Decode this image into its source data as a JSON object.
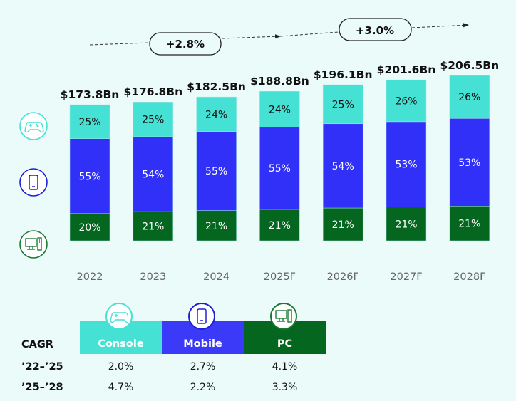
{
  "chart_data": {
    "type": "bar",
    "stacked": true,
    "title": "",
    "xlabel": "",
    "ylabel": "",
    "categories": [
      "2022",
      "2023",
      "2024",
      "2025F",
      "2026F",
      "2027F",
      "2028F"
    ],
    "totals": [
      173.8,
      176.8,
      182.5,
      188.8,
      196.1,
      201.6,
      206.5
    ],
    "total_labels": [
      "$173.8Bn",
      "$176.8Bn",
      "$182.5Bn",
      "$188.8Bn",
      "$196.1Bn",
      "$201.6Bn",
      "$206.5Bn"
    ],
    "series": [
      {
        "name": "PC",
        "color": "#04661f",
        "text_color": "#ffffff",
        "values": [
          20,
          21,
          21,
          21,
          21,
          21,
          21
        ]
      },
      {
        "name": "Mobile",
        "color": "#3030f8",
        "text_color": "#ffffff",
        "values": [
          55,
          54,
          55,
          55,
          54,
          53,
          53
        ]
      },
      {
        "name": "Console",
        "color": "#45e1d4",
        "text_color": "#111111",
        "values": [
          25,
          25,
          24,
          24,
          25,
          26,
          26
        ]
      }
    ],
    "value_unit": "%",
    "grid": false,
    "legend": "left-icons",
    "annotations": [
      {
        "label": "+2.8%",
        "span": [
          "2022",
          "2025F"
        ]
      },
      {
        "label": "+3.0%",
        "span": [
          "2025F",
          "2028F"
        ]
      }
    ]
  },
  "legend_icons": [
    {
      "series": "Console",
      "icon": "gamepad-icon",
      "color": "#45e1d4"
    },
    {
      "series": "Mobile",
      "icon": "smartphone-icon",
      "color": "#2020d0"
    },
    {
      "series": "PC",
      "icon": "desktop-pc-icon",
      "color": "#1a7a33"
    }
  ],
  "cagr": {
    "title": "CAGR",
    "columns": [
      {
        "label": "Console",
        "color": "#45e1d4",
        "icon": "gamepad-icon"
      },
      {
        "label": "Mobile",
        "color": "#3a3af8",
        "icon": "smartphone-icon"
      },
      {
        "label": "PC",
        "color": "#04661f",
        "icon": "desktop-pc-icon"
      }
    ],
    "rows": [
      {
        "period": "’22–’25",
        "values": [
          "2.0%",
          "2.7%",
          "4.1%"
        ]
      },
      {
        "period": "’25–’28",
        "values": [
          "4.7%",
          "2.2%",
          "3.3%"
        ]
      }
    ]
  }
}
